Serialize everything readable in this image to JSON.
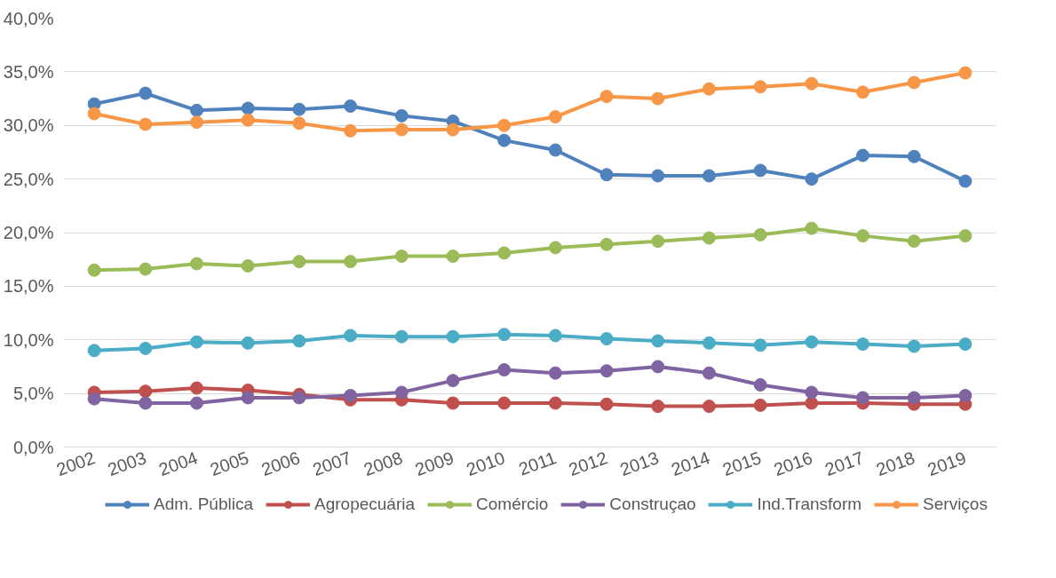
{
  "chart_data": {
    "type": "line",
    "categories": [
      "2002",
      "2003",
      "2004",
      "2005",
      "2006",
      "2007",
      "2008",
      "2009",
      "2010",
      "2011",
      "2012",
      "2013",
      "2014",
      "2015",
      "2016",
      "2017",
      "2018",
      "2019"
    ],
    "series": [
      {
        "name": "Adm. Pública",
        "color": "#4f81bd",
        "values": [
          32.0,
          33.0,
          31.4,
          31.6,
          31.5,
          31.8,
          30.9,
          30.4,
          28.6,
          27.7,
          25.4,
          25.3,
          25.3,
          25.8,
          25.0,
          27.2,
          27.1,
          24.8
        ]
      },
      {
        "name": "Agropecuária",
        "color": "#c0504d",
        "values": [
          5.1,
          5.2,
          5.5,
          5.3,
          4.9,
          4.4,
          4.4,
          4.1,
          4.1,
          4.1,
          4.0,
          3.8,
          3.8,
          3.9,
          4.1,
          4.1,
          4.0,
          4.0
        ]
      },
      {
        "name": "Comércio",
        "color": "#9bbb59",
        "values": [
          16.5,
          16.6,
          17.1,
          16.9,
          17.3,
          17.3,
          17.8,
          17.8,
          18.1,
          18.6,
          18.9,
          19.2,
          19.5,
          19.8,
          20.4,
          19.7,
          19.2,
          19.7
        ]
      },
      {
        "name": "Construçao",
        "color": "#8064a2",
        "values": [
          4.5,
          4.1,
          4.1,
          4.6,
          4.6,
          4.8,
          5.1,
          6.2,
          7.2,
          6.9,
          7.1,
          7.5,
          6.9,
          5.8,
          5.1,
          4.6,
          4.6,
          4.8
        ]
      },
      {
        "name": "Ind.Transform",
        "color": "#4bacc6",
        "values": [
          9.0,
          9.2,
          9.8,
          9.7,
          9.9,
          10.4,
          10.3,
          10.3,
          10.5,
          10.4,
          10.1,
          9.9,
          9.7,
          9.5,
          9.8,
          9.6,
          9.4,
          9.6
        ]
      },
      {
        "name": "Serviços",
        "color": "#f79646",
        "values": [
          31.1,
          30.1,
          30.3,
          30.5,
          30.2,
          29.5,
          29.6,
          29.6,
          30.0,
          30.8,
          32.7,
          32.5,
          33.4,
          33.6,
          33.9,
          33.1,
          34.0,
          34.9
        ]
      }
    ],
    "ylim": [
      0,
      40
    ],
    "yticks": [
      {
        "value": 0,
        "label": "0,0%"
      },
      {
        "value": 5,
        "label": "5,0%"
      },
      {
        "value": 10,
        "label": "10,0%"
      },
      {
        "value": 15,
        "label": "15,0%"
      },
      {
        "value": 20,
        "label": "20,0%"
      },
      {
        "value": 25,
        "label": "25,0%"
      },
      {
        "value": 30,
        "label": "30,0%"
      },
      {
        "value": 35,
        "label": "35,0%"
      },
      {
        "value": 40,
        "label": "40,0%"
      }
    ],
    "grid": "y",
    "legend": "bottom",
    "marker": "circle",
    "line_style": "solid"
  }
}
